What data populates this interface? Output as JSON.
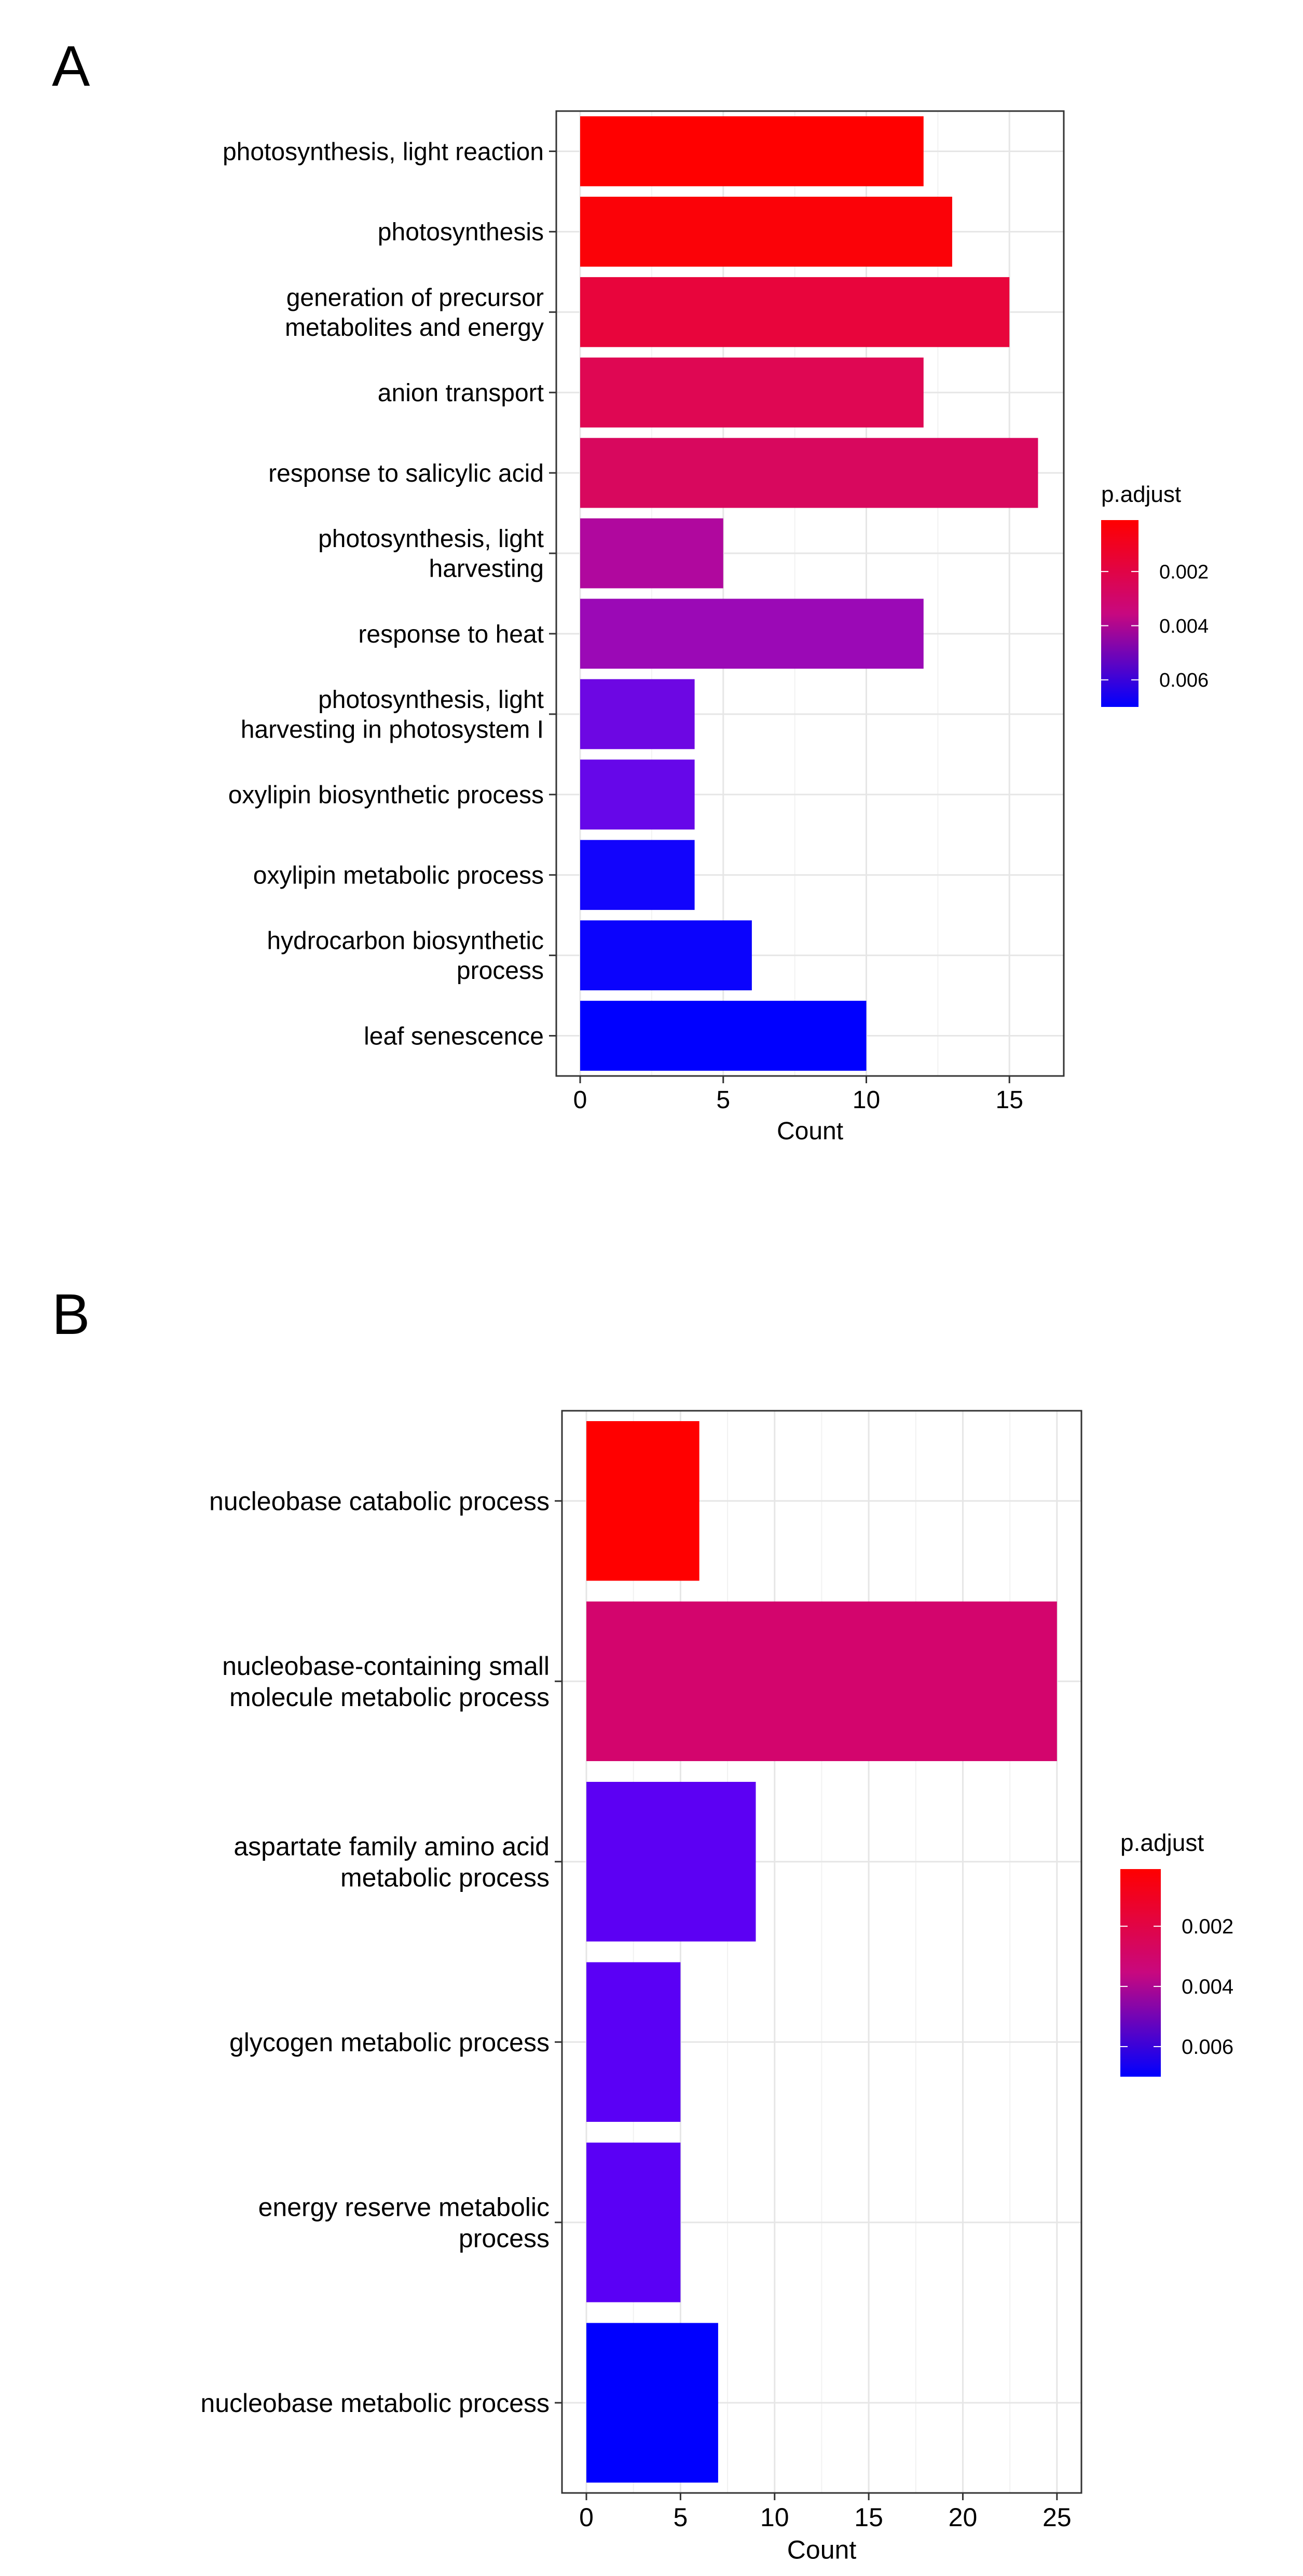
{
  "figure": {
    "panel_a_letter": "A",
    "panel_b_letter": "B"
  },
  "chart_data": [
    {
      "panel": "A",
      "type": "bar",
      "orientation": "horizontal",
      "title": "",
      "xlabel": "Count",
      "ylabel": "",
      "xlim": [
        0,
        16.9
      ],
      "xticks": [
        0,
        5,
        10,
        15
      ],
      "grid": true,
      "categories": [
        "photosynthesis, light reaction",
        "photosynthesis",
        "generation of precursor\nmetabolites and energy",
        "anion transport",
        "response to salicylic acid",
        "photosynthesis, light\nharvesting",
        "response to heat",
        "photosynthesis, light\nharvesting in photosystem I",
        "oxylipin biosynthetic process",
        "oxylipin metabolic process",
        "hydrocarbon biosynthetic\nprocess",
        "leaf senescence"
      ],
      "values": [
        12,
        13,
        15,
        12,
        16,
        5,
        12,
        4,
        4,
        4,
        6,
        10
      ],
      "p_adjust": [
        0.0001,
        0.0002,
        0.0011,
        0.0015,
        0.0018,
        0.0033,
        0.004,
        0.0055,
        0.0058,
        0.0068,
        0.0069,
        0.007
      ],
      "colors": [
        "#ff0000",
        "#fb0208",
        "#e8053c",
        "#df0753",
        "#d8085e",
        "#b0089e",
        "#9b09b6",
        "#6d07e3",
        "#6607e9",
        "#1204fc",
        "#0b03fd",
        "#0000ff"
      ],
      "legend": {
        "title": "p.adjust",
        "position": "right",
        "labels": [
          "0.002",
          "0.004",
          "0.006"
        ],
        "label_values": [
          0.002,
          0.004,
          0.006
        ],
        "range": [
          0.0001,
          0.007
        ],
        "low_color": "#ff0000",
        "high_color": "#0000ff"
      }
    },
    {
      "panel": "B",
      "type": "bar",
      "orientation": "horizontal",
      "title": "",
      "xlabel": "Count",
      "ylabel": "",
      "xlim": [
        0,
        26.3
      ],
      "xticks": [
        0,
        5,
        10,
        15,
        20,
        25
      ],
      "grid": true,
      "categories": [
        "nucleobase catabolic process",
        "nucleobase-containing small\nmolecule metabolic process",
        "aspartate family amino acid\nmetabolic process",
        "glycogen metabolic process",
        "energy reserve metabolic\nprocess",
        "nucleobase metabolic process"
      ],
      "values": [
        6,
        25,
        9,
        5,
        5,
        7
      ],
      "p_adjust": [
        0.0001,
        0.0028,
        0.0055,
        0.0056,
        0.0056,
        0.007
      ],
      "colors": [
        "#ff0000",
        "#d3056d",
        "#5c00f3",
        "#5a00f5",
        "#5a00f5",
        "#0000ff"
      ],
      "legend": {
        "title": "p.adjust",
        "position": "right",
        "labels": [
          "0.002",
          "0.004",
          "0.006"
        ],
        "label_values": [
          0.002,
          0.004,
          0.006
        ],
        "range": [
          0.0001,
          0.007
        ],
        "low_color": "#ff0000",
        "high_color": "#0000ff"
      }
    }
  ]
}
